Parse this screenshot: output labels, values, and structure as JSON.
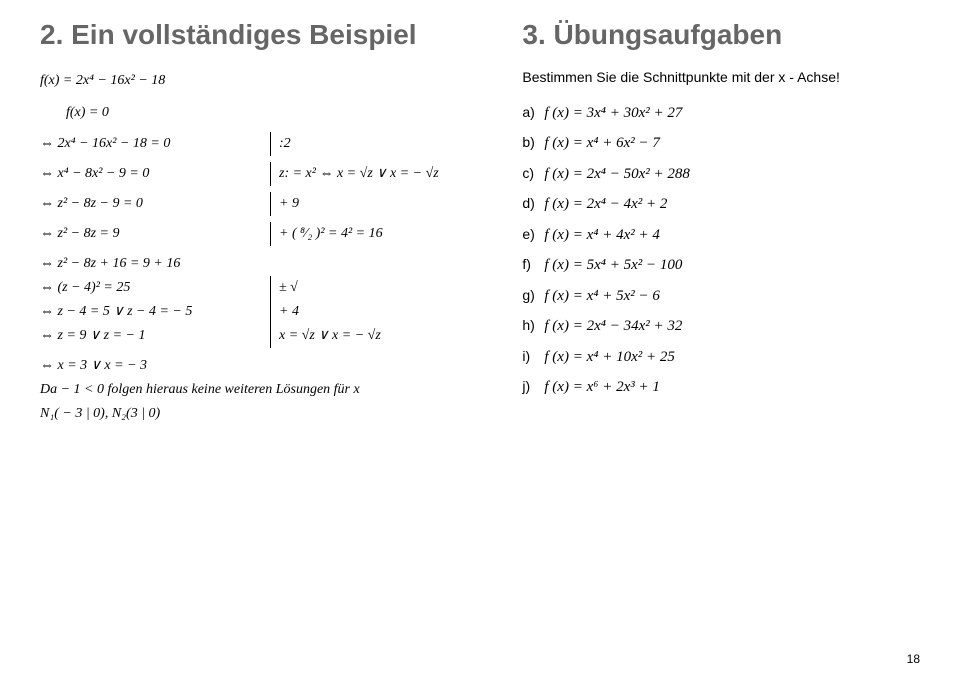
{
  "left": {
    "heading": "2. Ein vollständiges Beispiel",
    "introL1": "f(x) = 2x⁴ − 16x² − 18",
    "introL2": "f(x) = 0",
    "steps": [
      {
        "lhs": "⇔ 2x⁴ − 16x² − 18 = 0",
        "rhs": " :2"
      },
      {
        "lhs": "⇔   x⁴ − 8x² − 9 = 0",
        "rhs": "z: = x² ⇔ x = √z ∨ x = − √z"
      },
      {
        "lhs": "⇔   z² − 8z − 9 = 0",
        "rhs": " + 9"
      },
      {
        "lhs": "⇔   z² − 8z       = 9",
        "rhs": " + ( ⁸⁄₂ )² = 4² = 16"
      },
      {
        "lhs": "⇔   z² − 8z + 16 = 9 + 16",
        "rhs": ""
      },
      {
        "lhs": "⇔       (z − 4)² = 25",
        "rhs": " ± √"
      },
      {
        "lhs": "⇔ z − 4 = 5 ∨ z − 4 = − 5",
        "rhs": " + 4"
      },
      {
        "lhs": "⇔ z = 9 ∨ z = − 1",
        "rhs": "x = √z ∨ x = − √z"
      }
    ],
    "tail1": "⇔ x = 3 ∨ x = − 3",
    "tail2": "Da − 1 < 0 folgen hieraus keine weiteren Lösungen für x",
    "tail3": "N₁( − 3 | 0), N₂(3 | 0)"
  },
  "right": {
    "heading": "3. Übungsaufgaben",
    "instruction": "Bestimmen Sie die Schnittpunkte mit der x - Achse!",
    "items": [
      {
        "label": "a)",
        "eq": "f (x) = 3x⁴ + 30x² + 27"
      },
      {
        "label": "b)",
        "eq": "f (x) = x⁴ + 6x² − 7"
      },
      {
        "label": "c)",
        "eq": "f (x) = 2x⁴ − 50x² + 288"
      },
      {
        "label": "d)",
        "eq": "f (x) = 2x⁴ − 4x² + 2"
      },
      {
        "label": "e)",
        "eq": "f (x) = x⁴ + 4x² + 4"
      },
      {
        "label": "f)",
        "eq": "f (x) = 5x⁴ + 5x² − 100"
      },
      {
        "label": "g)",
        "eq": "f (x) = x⁴ + 5x² − 6"
      },
      {
        "label": "h)",
        "eq": "f (x) = 2x⁴ − 34x² + 32"
      },
      {
        "label": "i)",
        "eq": "f (x) = x⁴ + 10x² + 25"
      },
      {
        "label": "j)",
        "eq": "f (x) = x⁶ + 2x³ + 1"
      }
    ]
  },
  "pageNumber": "18"
}
